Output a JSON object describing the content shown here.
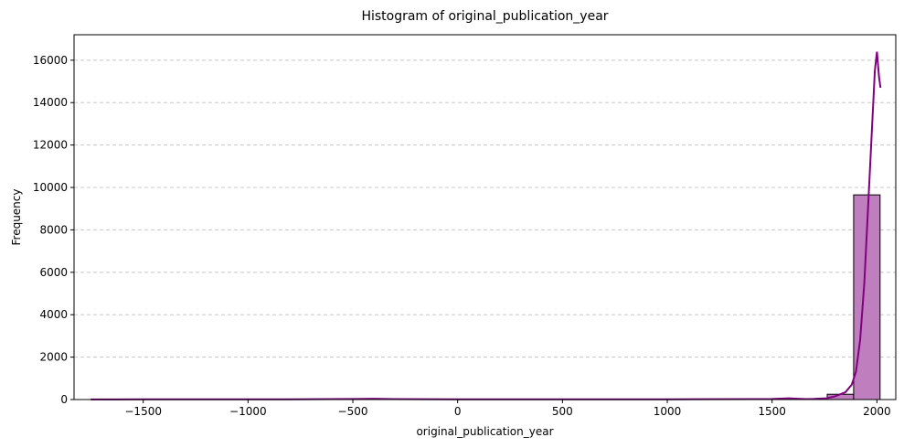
{
  "chart_data": {
    "type": "bar",
    "title": "Histogram of original_publication_year",
    "xlabel": "original_publication_year",
    "ylabel": "Frequency",
    "xlim": [
      -1830,
      2090
    ],
    "ylim": [
      0,
      17200
    ],
    "x_ticks": [
      -1500,
      -1000,
      -500,
      0,
      500,
      1000,
      1500,
      2000
    ],
    "x_tick_labels": [
      "−1500",
      "−1000",
      "−500",
      "0",
      "500",
      "1000",
      "1500",
      "2000"
    ],
    "y_ticks": [
      0,
      2000,
      4000,
      6000,
      8000,
      10000,
      12000,
      14000,
      16000
    ],
    "y_tick_labels": [
      "0",
      "2000",
      "4000",
      "6000",
      "8000",
      "10000",
      "12000",
      "14000",
      "16000"
    ],
    "grid": "y-dashed",
    "bins": [
      {
        "x0": 1763,
        "x1": 1889,
        "count": 250
      },
      {
        "x0": 1889,
        "x1": 2015,
        "count": 9650
      }
    ],
    "kde": {
      "name": "KDE",
      "x": [
        -1750,
        -1500,
        -1000,
        -800,
        -500,
        -400,
        -300,
        0,
        500,
        1000,
        1400,
        1500,
        1580,
        1620,
        1660,
        1700,
        1760,
        1800,
        1850,
        1880,
        1900,
        1920,
        1940,
        1960,
        1980,
        1990,
        2000,
        2010,
        2017
      ],
      "y": [
        5,
        8,
        10,
        15,
        25,
        40,
        20,
        15,
        10,
        12,
        20,
        25,
        60,
        40,
        20,
        30,
        60,
        150,
        350,
        700,
        1300,
        2800,
        5500,
        9500,
        13500,
        15500,
        16400,
        15200,
        14700
      ]
    },
    "colors": {
      "bar_fill": "#bf7fbf",
      "bar_edge": "#000000",
      "kde_line": "#800080",
      "grid": "#c8c8c8"
    }
  }
}
